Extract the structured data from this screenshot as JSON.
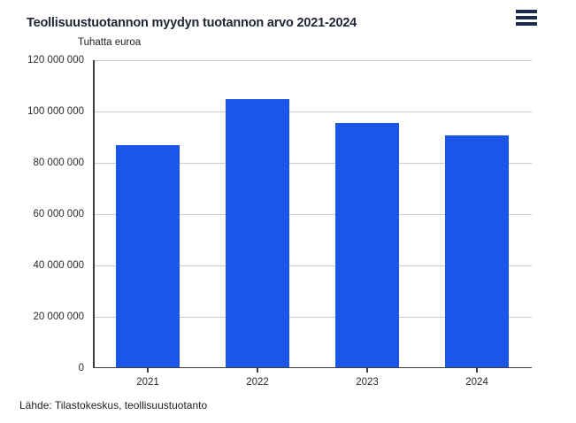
{
  "header": {
    "title": "Teollisuustuotannon myydyn tuotannon arvo 2021-2024",
    "menu_icon": "hamburger-menu"
  },
  "chart_data": {
    "type": "bar",
    "title": "Teollisuustuotannon myydyn tuotannon arvo 2021-2024",
    "ylabel": "Tuhatta euroa",
    "xlabel": "",
    "categories": [
      "2021",
      "2022",
      "2023",
      "2024"
    ],
    "values": [
      86800000,
      104800000,
      95400000,
      90700000
    ],
    "ylim": [
      0,
      120000000
    ],
    "ytick_interval": 20000000,
    "ytick_labels": [
      "0",
      "20 000 000",
      "40 000 000",
      "60 000 000",
      "80 000 000",
      "100 000 000",
      "120 000 000"
    ],
    "grid": true,
    "legend": false
  },
  "source": {
    "text": "Lähde: Tilastokeskus, teollisuustuotanto"
  },
  "colors": {
    "bar": "#1b56e8",
    "gridline": "#cbcbcb",
    "axis": "#3c3c3c",
    "title_text": "#1e2533",
    "menu_icon": "#1d2b4f",
    "tick_text": "#2b2b2b"
  }
}
